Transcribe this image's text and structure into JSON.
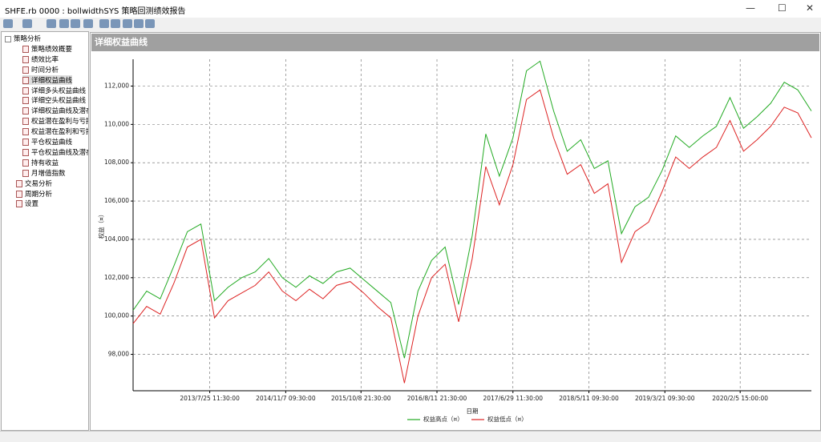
{
  "window": {
    "title": "SHFE.rb 0000 : bollwidthSYS 策略回测绩效报告"
  },
  "tree": [
    {
      "label": "策略分析",
      "children": [
        "策略绩效概要",
        "绩效比率",
        "时间分析",
        "详细权益曲线",
        "详细多头权益曲线",
        "详细空头权益曲线",
        "详细权益曲线及潜在",
        "权益潜在盈利与亏损",
        "权益潜在盈利和亏损",
        "平仓权益曲线",
        "平仓权益曲线及潜在",
        "持有收益",
        "月增值指数"
      ]
    },
    {
      "label": "交易分析"
    },
    {
      "label": "周期分析"
    },
    {
      "label": "设置"
    }
  ],
  "panel_title": "详细权益曲线",
  "chart_data": {
    "type": "line",
    "x_label": "日期",
    "y_label": "权益（¤）",
    "x": [
      0,
      2,
      4,
      6,
      8,
      10,
      12,
      14,
      16,
      18,
      20,
      22,
      24,
      26,
      28,
      30,
      32,
      34,
      36,
      38,
      40,
      42,
      44,
      46,
      48,
      50,
      52,
      54,
      56,
      58,
      60,
      62,
      64,
      66,
      68,
      70,
      72,
      74,
      76,
      78,
      80,
      82,
      84,
      86,
      88,
      90,
      92,
      94,
      96,
      98,
      100
    ],
    "series": [
      {
        "name": "权益高点（¤）",
        "color": "#22aa22",
        "values": [
          100300,
          101300,
          100900,
          102600,
          104400,
          104800,
          100800,
          101500,
          102000,
          102300,
          103000,
          102000,
          101500,
          102100,
          101700,
          102300,
          102500,
          101900,
          101300,
          100700,
          97800,
          101300,
          102900,
          103600,
          100600,
          104200,
          109500,
          107300,
          109300,
          112800,
          113300,
          110700,
          108600,
          109200,
          107700,
          108100,
          104300,
          105700,
          106200,
          107600,
          109400,
          108800,
          109400,
          109900,
          111400,
          109800,
          110400,
          111100,
          112200,
          111800,
          110700
        ]
      },
      {
        "name": "权益低点（¤）",
        "color": "#dd2222",
        "values": [
          99600,
          100500,
          100100,
          101700,
          103600,
          104000,
          99900,
          100800,
          101200,
          101600,
          102300,
          101300,
          100800,
          101400,
          100900,
          101600,
          101800,
          101200,
          100500,
          99900,
          96500,
          100000,
          102000,
          102700,
          99700,
          103000,
          107800,
          105800,
          107900,
          111300,
          111800,
          109300,
          107400,
          107900,
          106400,
          106900,
          102800,
          104400,
          104900,
          106500,
          108300,
          107700,
          108300,
          108800,
          110200,
          108600,
          109200,
          109900,
          110900,
          110600,
          109300
        ]
      }
    ],
    "xlim": [
      0,
      100
    ],
    "xticks": [
      {
        "value": 11.3,
        "label": "2013/7/25 11:30:00"
      },
      {
        "value": 22.5,
        "label": "2014/11/7 09:30:00"
      },
      {
        "value": 33.6,
        "label": "2015/10/8 21:30:00"
      },
      {
        "value": 44.8,
        "label": "2016/8/11 21:30:00"
      },
      {
        "value": 56.0,
        "label": "2017/6/29 11:30:00"
      },
      {
        "value": 67.2,
        "label": "2018/5/11 09:30:00"
      },
      {
        "value": 78.4,
        "label": "2019/3/21 09:30:00"
      },
      {
        "value": 89.5,
        "label": "2020/2/5 15:00:00"
      }
    ],
    "ylim": [
      96100,
      113400
    ],
    "yticks": [
      {
        "value": 98000,
        "label": "98,000"
      },
      {
        "value": 100000,
        "label": "100,000"
      },
      {
        "value": 102000,
        "label": "102,000"
      },
      {
        "value": 104000,
        "label": "104,000"
      },
      {
        "value": 106000,
        "label": "106,000"
      },
      {
        "value": 108000,
        "label": "108,000"
      },
      {
        "value": 110000,
        "label": "110,000"
      },
      {
        "value": 112000,
        "label": "112,000"
      }
    ],
    "grid": true
  }
}
